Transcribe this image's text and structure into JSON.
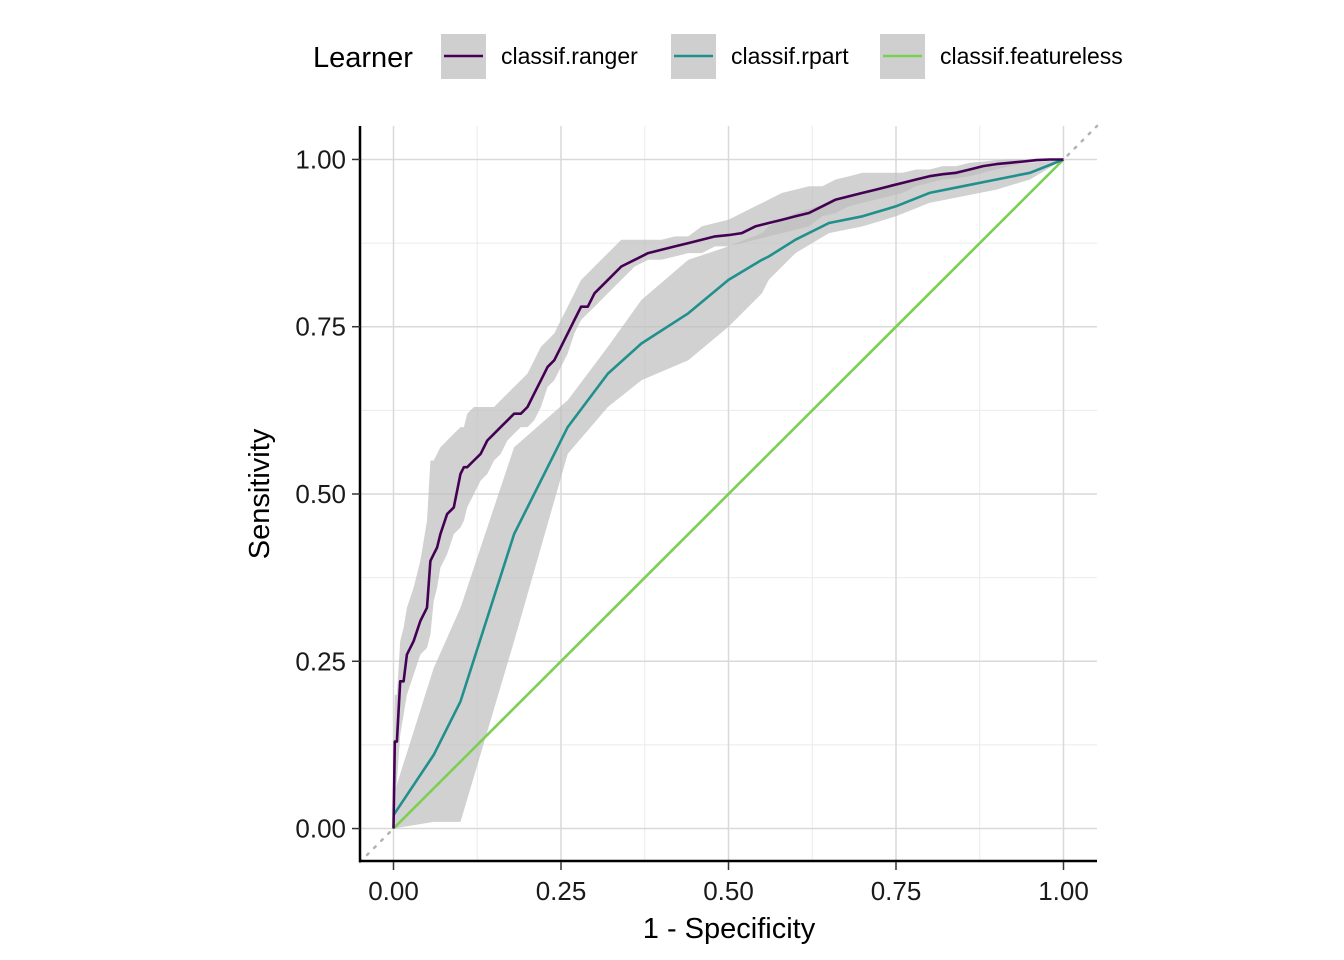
{
  "chart_data": {
    "type": "line",
    "title": "",
    "xlabel": "1 - Specificity",
    "ylabel": "Sensitivity",
    "xlim": [
      -0.05,
      1.05
    ],
    "ylim": [
      -0.05,
      1.05
    ],
    "x_ticks": [
      0,
      0.25,
      0.5,
      0.75,
      1
    ],
    "x_tick_labels": [
      "0.00",
      "0.25",
      "0.50",
      "0.75",
      "1.00"
    ],
    "y_ticks": [
      0,
      0.25,
      0.5,
      0.75,
      1
    ],
    "y_tick_labels": [
      "0.00",
      "0.25",
      "0.50",
      "0.75",
      "1.00"
    ],
    "grid": true,
    "legend": {
      "title": "Learner",
      "position": "top",
      "entries": [
        "classif.ranger",
        "classif.rpart",
        "classif.featureless"
      ]
    },
    "reference_line": {
      "style": "dotted",
      "color": "#b3b3b3",
      "x": [
        -0.05,
        1.05
      ],
      "y": [
        -0.05,
        1.05
      ]
    },
    "series": [
      {
        "name": "classif.ranger",
        "color": "#440154",
        "x": [
          0,
          0.002,
          0.005,
          0.01,
          0.015,
          0.02,
          0.03,
          0.04,
          0.05,
          0.055,
          0.06,
          0.065,
          0.07,
          0.08,
          0.09,
          0.1,
          0.105,
          0.11,
          0.12,
          0.13,
          0.14,
          0.15,
          0.16,
          0.17,
          0.18,
          0.19,
          0.2,
          0.21,
          0.22,
          0.23,
          0.24,
          0.25,
          0.26,
          0.27,
          0.28,
          0.29,
          0.3,
          0.32,
          0.34,
          0.36,
          0.38,
          0.4,
          0.42,
          0.44,
          0.46,
          0.48,
          0.5,
          0.52,
          0.54,
          0.56,
          0.58,
          0.6,
          0.62,
          0.64,
          0.66,
          0.68,
          0.7,
          0.72,
          0.74,
          0.76,
          0.78,
          0.8,
          0.82,
          0.84,
          0.86,
          0.88,
          0.9,
          0.92,
          0.94,
          0.96,
          0.98,
          1.0
        ],
        "y": [
          0,
          0.13,
          0.13,
          0.22,
          0.22,
          0.26,
          0.28,
          0.31,
          0.33,
          0.4,
          0.41,
          0.42,
          0.44,
          0.47,
          0.48,
          0.53,
          0.54,
          0.54,
          0.55,
          0.56,
          0.58,
          0.59,
          0.6,
          0.61,
          0.62,
          0.62,
          0.63,
          0.65,
          0.67,
          0.69,
          0.7,
          0.72,
          0.74,
          0.76,
          0.78,
          0.78,
          0.8,
          0.82,
          0.84,
          0.85,
          0.86,
          0.865,
          0.87,
          0.875,
          0.88,
          0.885,
          0.887,
          0.89,
          0.9,
          0.905,
          0.91,
          0.915,
          0.92,
          0.93,
          0.94,
          0.945,
          0.95,
          0.955,
          0.96,
          0.965,
          0.97,
          0.975,
          0.978,
          0.98,
          0.985,
          0.99,
          0.993,
          0.995,
          0.997,
          0.999,
          1.0,
          1.0
        ],
        "lower": [
          0,
          0.05,
          0.07,
          0.14,
          0.17,
          0.2,
          0.23,
          0.26,
          0.27,
          0.29,
          0.34,
          0.36,
          0.39,
          0.41,
          0.44,
          0.45,
          0.46,
          0.48,
          0.5,
          0.52,
          0.53,
          0.55,
          0.56,
          0.58,
          0.59,
          0.6,
          0.6,
          0.61,
          0.63,
          0.66,
          0.67,
          0.69,
          0.71,
          0.74,
          0.76,
          0.77,
          0.78,
          0.8,
          0.82,
          0.84,
          0.85,
          0.85,
          0.855,
          0.86,
          0.86,
          0.87,
          0.87,
          0.875,
          0.88,
          0.885,
          0.89,
          0.895,
          0.9,
          0.915,
          0.92,
          0.93,
          0.935,
          0.94,
          0.945,
          0.95,
          0.96,
          0.965,
          0.97,
          0.972,
          0.975,
          0.98,
          0.985,
          0.99,
          0.994,
          0.997,
          0.999,
          1.0
        ],
        "upper": [
          0.02,
          0.2,
          0.2,
          0.28,
          0.3,
          0.33,
          0.36,
          0.4,
          0.46,
          0.55,
          0.55,
          0.56,
          0.57,
          0.58,
          0.59,
          0.6,
          0.6,
          0.62,
          0.63,
          0.63,
          0.63,
          0.63,
          0.64,
          0.65,
          0.66,
          0.67,
          0.68,
          0.7,
          0.72,
          0.73,
          0.74,
          0.76,
          0.78,
          0.8,
          0.82,
          0.83,
          0.84,
          0.86,
          0.88,
          0.88,
          0.88,
          0.88,
          0.885,
          0.885,
          0.9,
          0.905,
          0.91,
          0.92,
          0.93,
          0.94,
          0.95,
          0.955,
          0.96,
          0.96,
          0.97,
          0.975,
          0.98,
          0.98,
          0.98,
          0.98,
          0.985,
          0.985,
          0.99,
          0.99,
          0.995,
          0.997,
          0.999,
          1.0,
          1.0,
          1.0,
          1.0,
          1.0
        ]
      },
      {
        "name": "classif.rpart",
        "color": "#21908c",
        "x": [
          0,
          0.06,
          0.1,
          0.18,
          0.26,
          0.32,
          0.37,
          0.44,
          0.5,
          0.55,
          0.56,
          0.6,
          0.65,
          0.7,
          0.75,
          0.8,
          0.85,
          0.9,
          0.95,
          1.0
        ],
        "y": [
          0.02,
          0.11,
          0.19,
          0.44,
          0.6,
          0.68,
          0.725,
          0.77,
          0.82,
          0.85,
          0.855,
          0.88,
          0.905,
          0.915,
          0.93,
          0.95,
          0.96,
          0.97,
          0.98,
          1.0
        ],
        "lower": [
          0,
          0.01,
          0.01,
          0.28,
          0.56,
          0.63,
          0.67,
          0.7,
          0.75,
          0.8,
          0.82,
          0.86,
          0.89,
          0.9,
          0.915,
          0.935,
          0.945,
          0.955,
          0.97,
          1.0
        ],
        "upper": [
          0.05,
          0.24,
          0.33,
          0.57,
          0.64,
          0.72,
          0.79,
          0.85,
          0.87,
          0.89,
          0.9,
          0.92,
          0.935,
          0.95,
          0.965,
          0.975,
          0.985,
          0.99,
          0.995,
          1.0
        ]
      },
      {
        "name": "classif.featureless",
        "color": "#7ad151",
        "x": [
          0,
          1
        ],
        "y": [
          0,
          1
        ]
      }
    ]
  }
}
